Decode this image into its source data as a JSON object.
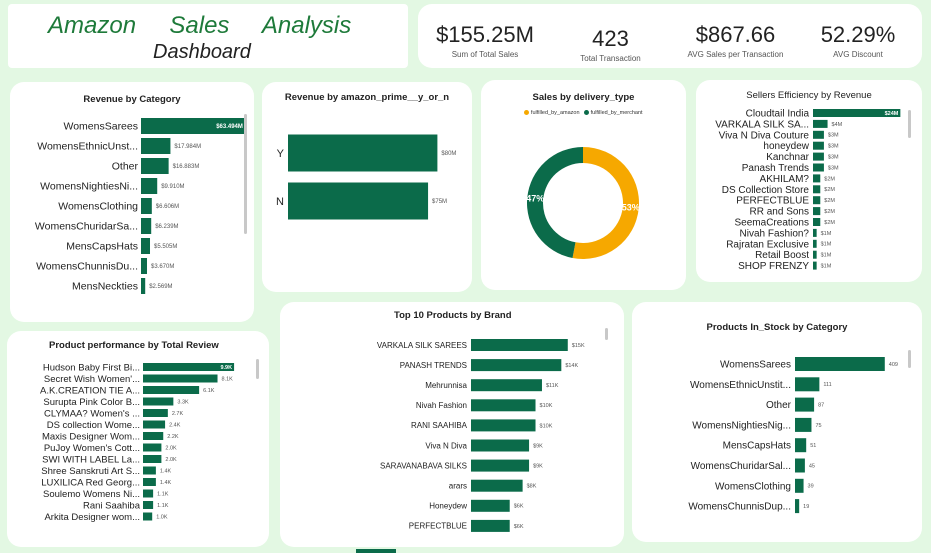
{
  "header": {
    "title": "Amazon     Sales     Analysis",
    "subtitle": "Dashboard"
  },
  "kpis": [
    {
      "value": "$155.25M",
      "label": "Sum of Total Sales"
    },
    {
      "value": "423",
      "label": "Total Transaction"
    },
    {
      "value": "$867.66",
      "label": "AVG Sales per Transaction"
    },
    {
      "value": "52.29%",
      "label": "AVG Discount"
    }
  ],
  "colors": {
    "bar": "#0b6b4a",
    "accent": "#f6a800",
    "title": "#1e7a3a",
    "background": "#e3f8e3"
  },
  "chart_data": [
    {
      "id": "revenue_by_category",
      "type": "bar",
      "orientation": "horizontal",
      "title": "Revenue by Category",
      "categories": [
        "WomensSarees",
        "WomensEthnicUnst...",
        "Other",
        "WomensNightiesNi...",
        "WomensClothing",
        "WomensChuridarSa...",
        "MensCapsHats",
        "WomensChunnisDu...",
        "MensNeckties"
      ],
      "values": [
        63.494,
        17.984,
        16.883,
        9.91,
        6.606,
        6.239,
        5.505,
        3.67,
        2.569
      ],
      "labels": [
        "$63.494M",
        "$17.984M",
        "$16.883M",
        "$9.910M",
        "$6.606M",
        "$6.239M",
        "$5.505M",
        "$3.670M",
        "$2.569M"
      ],
      "xlim": [
        0,
        66
      ]
    },
    {
      "id": "revenue_by_prime",
      "type": "bar",
      "orientation": "horizontal",
      "title": "Revenue by amazon_prime__y_or_n",
      "categories": [
        "Y",
        "N"
      ],
      "values": [
        80,
        75
      ],
      "labels": [
        "$80M",
        "$75M"
      ],
      "xlim": [
        0,
        83
      ]
    },
    {
      "id": "sales_by_delivery",
      "type": "pie",
      "donut": true,
      "title": "Sales by delivery_type",
      "legend": [
        "fulfilled_by_amazon",
        "fulfilled_by_merchant"
      ],
      "values": [
        53,
        47
      ],
      "labels": [
        "53%",
        "47%"
      ],
      "colors": [
        "#f6a800",
        "#0b6b4a"
      ]
    },
    {
      "id": "sellers_efficiency",
      "type": "bar",
      "orientation": "horizontal",
      "title": "Sellers Efficiency by Revenue",
      "categories": [
        "Cloudtail India",
        "VARKALA SILK SA...",
        "Viva N Diva Couture",
        "honeydew",
        "Kanchnar",
        "Panash Trends",
        "AKHILAM?",
        "DS Collection Store",
        "PERFECTBLUE",
        "RR and Sons",
        "SeemaCreations",
        "Nivah Fashion?",
        "Rajratan Exclusive",
        "Retail Boost",
        "SHOP FRENZY"
      ],
      "values": [
        24,
        4,
        3,
        3,
        3,
        3,
        2,
        2,
        2,
        2,
        2,
        1,
        1,
        1,
        1
      ],
      "labels": [
        "$24M",
        "$4M",
        "$3M",
        "$3M",
        "$3M",
        "$3M",
        "$2M",
        "$2M",
        "$2M",
        "$2M",
        "$2M",
        "$1M",
        "$1M",
        "$1M",
        "$1M"
      ],
      "xlim": [
        0,
        25
      ]
    },
    {
      "id": "product_performance",
      "type": "bar",
      "orientation": "horizontal",
      "title": "Product performance by Total Review",
      "categories": [
        "Hudson Baby First Bi...",
        "Secret Wish Women'...",
        "A.K.CREATION TIE A...",
        "Surupta Pink Color B...",
        "CLYMAA? Women's ...",
        "DS collection Wome...",
        "Maxis Designer Wom...",
        "PuJoy Women's Cott...",
        "SWI WITH LABEL La...",
        "Shree Sanskruti Art S...",
        "LUXILICA Red Georg...",
        "Soulemo Womens Ni...",
        "Rani Saahiba",
        "Arkita Designer wom..."
      ],
      "values": [
        9.9,
        8.1,
        6.1,
        3.3,
        2.7,
        2.4,
        2.2,
        2.0,
        2.0,
        1.4,
        1.4,
        1.1,
        1.1,
        1.0
      ],
      "labels": [
        "9.9K",
        "8.1K",
        "6.1K",
        "3.3K",
        "2.7K",
        "2.4K",
        "2.2K",
        "2.0K",
        "2.0K",
        "1.4K",
        "1.4K",
        "1.1K",
        "1.1K",
        "1.0K"
      ],
      "xlim": [
        0,
        10
      ]
    },
    {
      "id": "top10_products_by_brand",
      "type": "bar",
      "orientation": "horizontal",
      "title": "Top 10 Products by Brand",
      "categories": [
        "VARKALA SILK SAREES",
        "PANASH TRENDS",
        "Mehrunnisa",
        "Nivah Fashion",
        "RANI SAAHIBA",
        "Viva N Diva",
        "SARAVANABAVA SILKS",
        "arars",
        "Honeydew",
        "PERFECTBLUE"
      ],
      "values": [
        15,
        14,
        11,
        10,
        10,
        9,
        9,
        8,
        6,
        6
      ],
      "labels": [
        "$15K",
        "$14K",
        "$11K",
        "$10K",
        "$10K",
        "$9K",
        "$9K",
        "$8K",
        "$6K",
        "$6K"
      ],
      "xlim": [
        0,
        15.5
      ]
    },
    {
      "id": "products_in_stock",
      "type": "bar",
      "orientation": "horizontal",
      "title": "Products In_Stock by Category",
      "categories": [
        "WomensSarees",
        "WomensEthnicUnstit...",
        "Other",
        "WomensNightiesNig...",
        "MensCapsHats",
        "WomensChuridarSal...",
        "WomensClothing",
        "WomensChunnisDup..."
      ],
      "values": [
        409,
        111,
        87,
        75,
        51,
        45,
        39,
        19
      ],
      "labels": [
        "409",
        "111",
        "87",
        "75",
        "51",
        "45",
        "39",
        "19"
      ],
      "xlim": [
        0,
        410
      ]
    }
  ]
}
